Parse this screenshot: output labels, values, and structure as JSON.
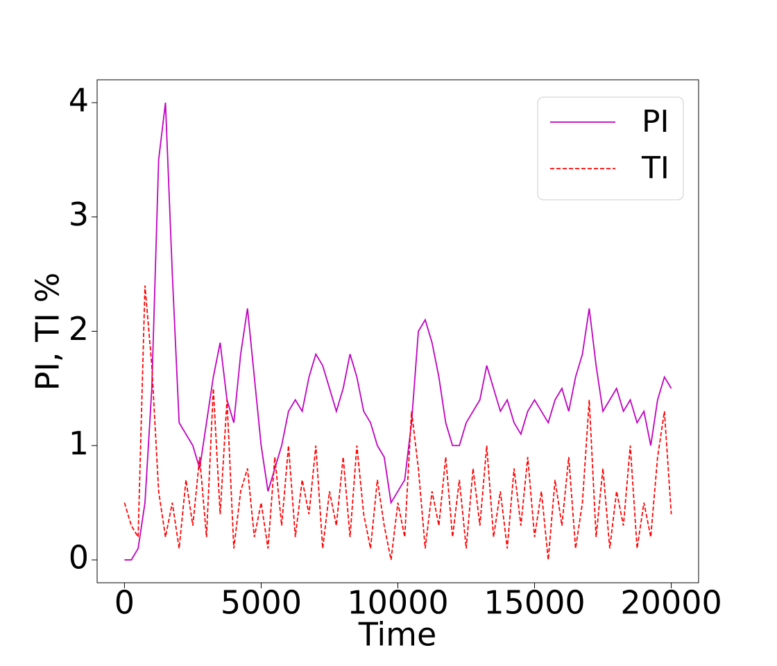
{
  "chart_data": {
    "type": "line",
    "xlabel": "Time",
    "ylabel": "PI, TI %",
    "x": [
      0,
      250,
      500,
      750,
      1000,
      1250,
      1500,
      1750,
      2000,
      2250,
      2500,
      2750,
      3000,
      3250,
      3500,
      3750,
      4000,
      4250,
      4500,
      4750,
      5000,
      5250,
      5500,
      5750,
      6000,
      6250,
      6500,
      6750,
      7000,
      7250,
      7500,
      7750,
      8000,
      8250,
      8500,
      8750,
      9000,
      9250,
      9500,
      9750,
      10000,
      10250,
      10500,
      10750,
      11000,
      11250,
      11500,
      11750,
      12000,
      12250,
      12500,
      12750,
      13000,
      13250,
      13500,
      13750,
      14000,
      14250,
      14500,
      14750,
      15000,
      15250,
      15500,
      15750,
      16000,
      16250,
      16500,
      16750,
      17000,
      17250,
      17500,
      17750,
      18000,
      18250,
      18500,
      18750,
      19000,
      19250,
      19500,
      19750,
      20000
    ],
    "series": [
      {
        "name": "PI",
        "color": "#bf00bf",
        "linestyle": "solid",
        "values": [
          0,
          0,
          0.1,
          0.5,
          1.5,
          3.5,
          4.0,
          2.5,
          1.2,
          1.1,
          1.0,
          0.8,
          1.2,
          1.6,
          1.9,
          1.4,
          1.2,
          1.8,
          2.2,
          1.6,
          1.0,
          0.6,
          0.8,
          1.0,
          1.3,
          1.4,
          1.3,
          1.6,
          1.8,
          1.7,
          1.5,
          1.3,
          1.5,
          1.8,
          1.6,
          1.3,
          1.2,
          1.0,
          0.9,
          0.5,
          0.6,
          0.7,
          1.2,
          2.0,
          2.1,
          1.9,
          1.6,
          1.2,
          1.0,
          1.0,
          1.2,
          1.3,
          1.4,
          1.7,
          1.5,
          1.3,
          1.4,
          1.2,
          1.1,
          1.3,
          1.4,
          1.3,
          1.2,
          1.4,
          1.5,
          1.3,
          1.6,
          1.8,
          2.2,
          1.7,
          1.3,
          1.4,
          1.5,
          1.3,
          1.4,
          1.2,
          1.3,
          1.0,
          1.4,
          1.6,
          1.5
        ]
      },
      {
        "name": "TI",
        "color": "#ff0000",
        "linestyle": "dashed",
        "values": [
          0.5,
          0.3,
          0.2,
          2.4,
          1.7,
          0.6,
          0.2,
          0.5,
          0.1,
          0.7,
          0.3,
          0.9,
          0.2,
          1.5,
          0.4,
          1.4,
          0.1,
          0.6,
          0.8,
          0.2,
          0.5,
          0.1,
          0.9,
          0.3,
          1.0,
          0.2,
          0.7,
          0.4,
          1.0,
          0.1,
          0.6,
          0.3,
          0.9,
          0.2,
          1.0,
          0.4,
          0.1,
          0.7,
          0.3,
          0,
          0.5,
          0.2,
          1.3,
          0.8,
          0.1,
          0.6,
          0.3,
          0.9,
          0.2,
          0.7,
          0.1,
          0.8,
          0.3,
          1.0,
          0.2,
          0.6,
          0.1,
          0.8,
          0.3,
          0.9,
          0.2,
          0.6,
          0,
          0.7,
          0.3,
          0.9,
          0.1,
          0.5,
          1.4,
          0.2,
          0.8,
          0.1,
          0.6,
          0.3,
          1.0,
          0.1,
          0.5,
          0.2,
          0.9,
          1.3,
          0.4
        ]
      }
    ],
    "xlim": [
      -1000,
      21000
    ],
    "xticks": [
      0,
      5000,
      10000,
      15000,
      20000
    ],
    "ylim": [
      -0.2,
      4.2
    ],
    "yticks": [
      0,
      1,
      2,
      3,
      4
    ],
    "legend": "upper right"
  }
}
